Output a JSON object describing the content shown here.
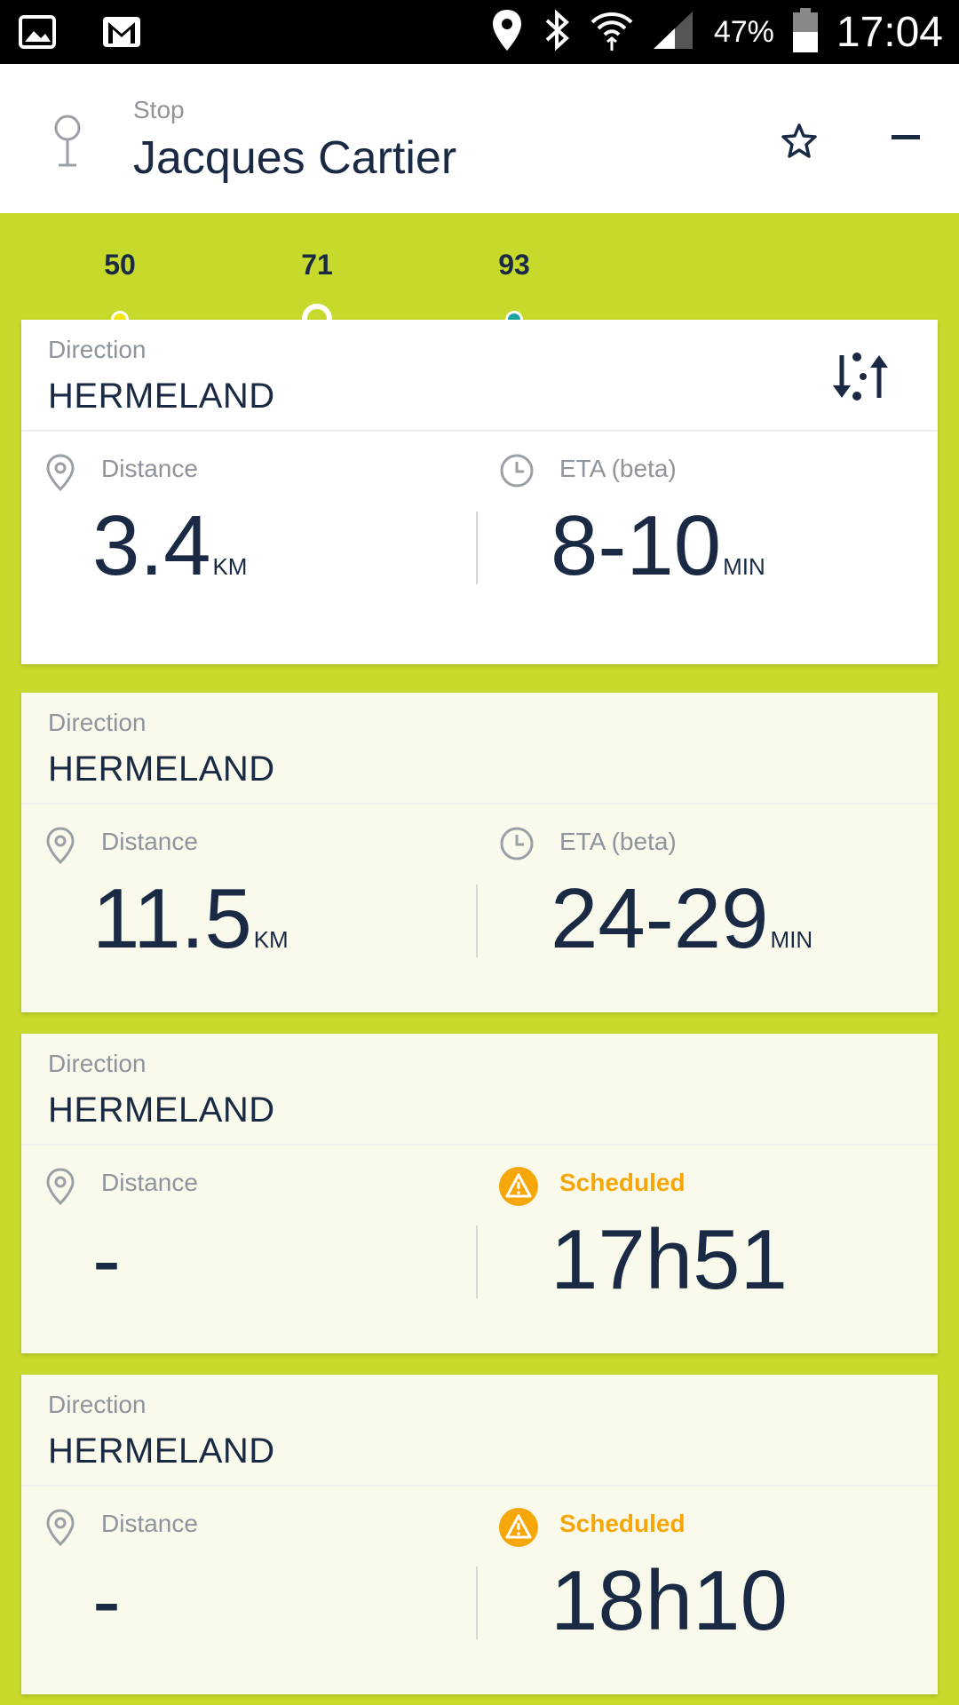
{
  "status_bar": {
    "battery": "47%",
    "time": "17:04"
  },
  "header": {
    "stop_label": "Stop",
    "stop_name": "Jacques Cartier"
  },
  "tabs": [
    {
      "label": "50",
      "color": "#f2e518"
    },
    {
      "label": "71",
      "color": "#c7d92a"
    },
    {
      "label": "93",
      "color": "#1aa3a1"
    }
  ],
  "cards": [
    {
      "direction_label": "Direction",
      "direction": "HERMELAND",
      "distance_label": "Distance",
      "distance": "3.4",
      "distance_unit": "KM",
      "eta_label": "ETA (beta)",
      "eta": "8-10",
      "eta_unit": "MIN"
    },
    {
      "direction_label": "Direction",
      "direction": "HERMELAND",
      "distance_label": "Distance",
      "distance": "11.5",
      "distance_unit": "KM",
      "eta_label": "ETA (beta)",
      "eta": "24-29",
      "eta_unit": "MIN"
    },
    {
      "direction_label": "Direction",
      "direction": "HERMELAND",
      "distance_label": "Distance",
      "distance": "-",
      "eta_label": "Scheduled",
      "eta": "17h51"
    },
    {
      "direction_label": "Direction",
      "direction": "HERMELAND",
      "distance_label": "Distance",
      "distance": "-",
      "eta_label": "Scheduled",
      "eta": "18h10"
    }
  ],
  "colors": {
    "accent": "#c7d92a",
    "text_dark": "#1a2a44",
    "text_muted": "#8e949b",
    "warning": "#f5a70a",
    "card_selected": "#ffffff",
    "card_default": "#f9f9ec"
  }
}
